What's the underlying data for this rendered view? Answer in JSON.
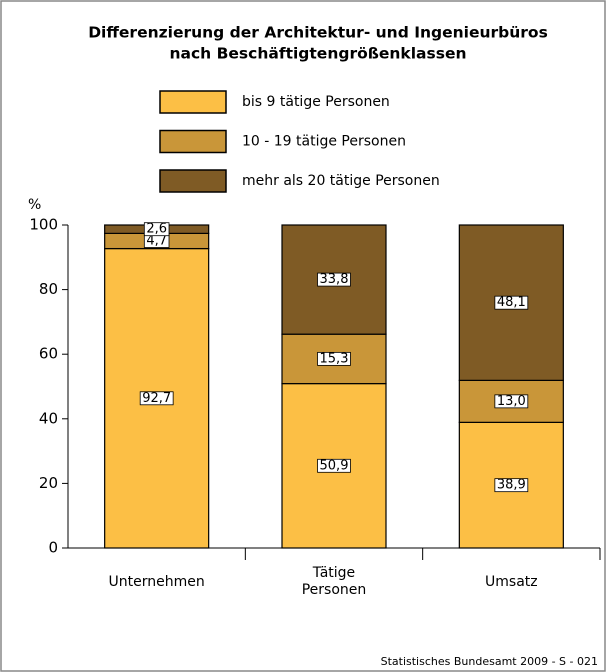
{
  "chart_data": {
    "type": "stacked_bar",
    "title": [
      "Differenzierung der Architektur- und Ingenieurbüros",
      "nach Beschäftigtengrößenklassen"
    ],
    "y_label": "%",
    "categories": [
      "Unternehmen",
      "Tätige Personen",
      "Umsatz"
    ],
    "series": [
      {
        "name": "bis 9 tätige Personen",
        "color": "#fcbf45",
        "values": [
          92.7,
          50.9,
          38.9
        ],
        "value_labels": [
          "92,7",
          "50,9",
          "38,9"
        ]
      },
      {
        "name": "10 - 19 tätige Personen",
        "color": "#c99639",
        "values": [
          4.7,
          15.3,
          13.0
        ],
        "value_labels": [
          "4,7",
          "15,3",
          "13,0"
        ]
      },
      {
        "name": "mehr als 20 tätige Personen",
        "color": "#7f5b25",
        "values": [
          2.6,
          33.8,
          48.1
        ],
        "value_labels": [
          "2,6",
          "33,8",
          "48,1"
        ]
      }
    ],
    "ylim": [
      0,
      100
    ],
    "yticks": [
      0,
      20,
      40,
      60,
      80,
      100
    ],
    "source": "Statistisches Bundesamt 2009 - S - 021"
  }
}
